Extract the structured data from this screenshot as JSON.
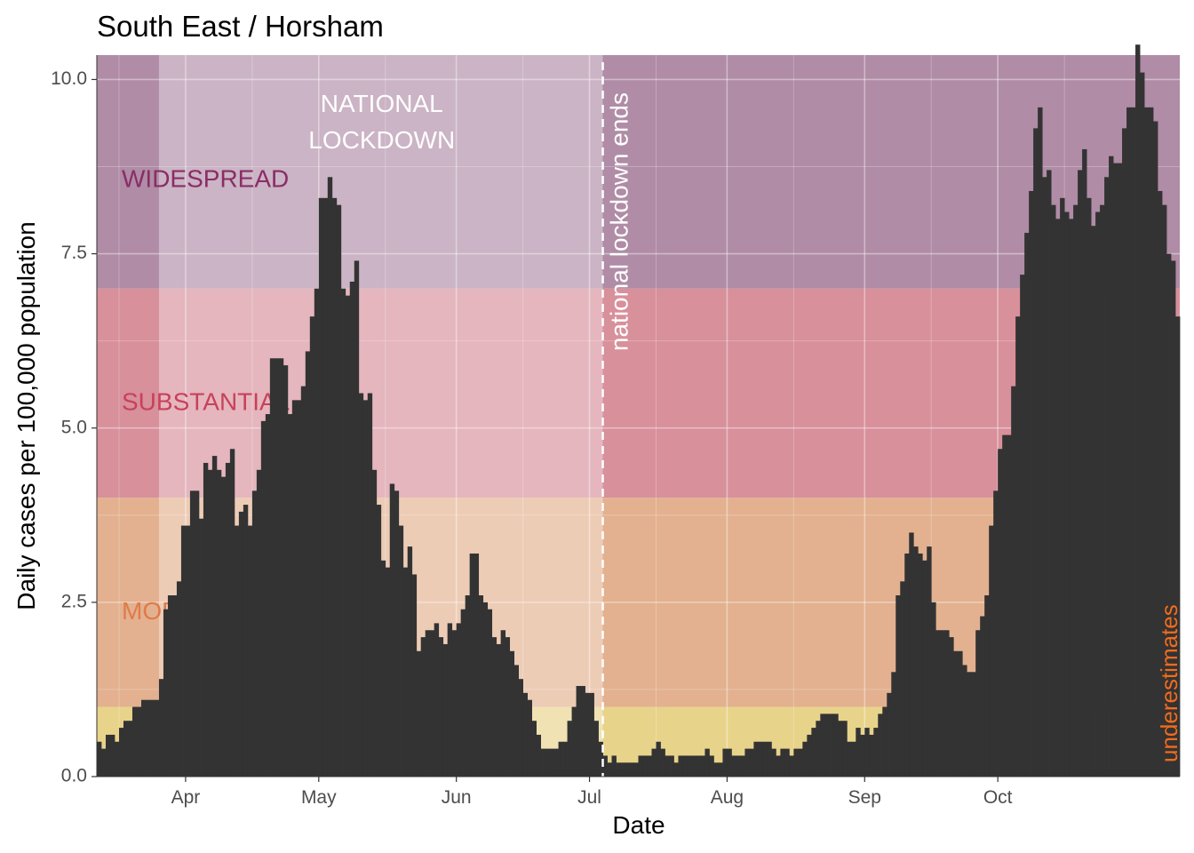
{
  "chart_data": {
    "type": "bar",
    "title": "South East / Horsham",
    "xlabel": "Date",
    "ylabel": "Daily cases per 100,000 population",
    "x_start": "2020-03-12",
    "ylim": [
      0,
      10.35
    ],
    "yticks": [
      0.0,
      2.5,
      5.0,
      7.5,
      10.0
    ],
    "ytick_labels": [
      "0.0",
      "2.5",
      "5.0",
      "7.5",
      "10.0"
    ],
    "xticks": [
      {
        "date": "2020-04-01",
        "label": "Apr"
      },
      {
        "date": "2020-05-01",
        "label": "May"
      },
      {
        "date": "2020-06-01",
        "label": "Jun"
      },
      {
        "date": "2020-07-01",
        "label": "Jul"
      },
      {
        "date": "2020-08-01",
        "label": "Aug"
      },
      {
        "date": "2020-09-01",
        "label": "Sep"
      },
      {
        "date": "2020-10-01",
        "label": "Oct"
      }
    ],
    "bands": [
      {
        "label": "",
        "ymin": 0,
        "ymax": 1,
        "color": "#E8D38A"
      },
      {
        "label": "MODERATE",
        "ymin": 1,
        "ymax": 4,
        "color": "#E3B18F"
      },
      {
        "label": "SUBSTANTIAL",
        "ymin": 4,
        "ymax": 7,
        "color": "#D8909B"
      },
      {
        "label": "WIDESPREAD",
        "ymin": 7,
        "ymax": 10.35,
        "color": "#B08CA6"
      }
    ],
    "band_label_colors": {
      "MODERATE": "#E07A4A",
      "SUBSTANTIAL": "#C8415A",
      "WIDESPREAD": "#8A2D66"
    },
    "lockdown": {
      "start": "2020-03-26",
      "end": "2020-07-04",
      "label_line1": "NATIONAL",
      "label_line2": "LOCKDOWN",
      "end_label": "national lockdown ends"
    },
    "underestimates_label": "underestimates",
    "underestimates_color": "#F26B1D",
    "bar_color": "#333333",
    "values": [
      0.5,
      0.4,
      0.6,
      0.6,
      0.5,
      0.7,
      0.8,
      0.8,
      1.0,
      1.0,
      1.1,
      1.1,
      1.1,
      1.1,
      1.4,
      2.4,
      2.6,
      2.6,
      2.8,
      3.6,
      3.6,
      4.1,
      4.1,
      3.7,
      4.5,
      4.4,
      4.6,
      4.4,
      4.3,
      4.5,
      4.7,
      3.6,
      3.8,
      3.9,
      3.6,
      4.1,
      4.4,
      5.1,
      5.2,
      6.0,
      6.0,
      6.0,
      5.9,
      5.2,
      5.4,
      5.4,
      5.6,
      6.1,
      6.6,
      7.0,
      8.3,
      8.3,
      8.6,
      8.3,
      8.2,
      7.0,
      6.9,
      7.1,
      7.4,
      5.5,
      5.4,
      5.5,
      4.4,
      3.9,
      3.1,
      3.0,
      4.2,
      4.1,
      3.6,
      3.0,
      3.3,
      2.9,
      1.8,
      2.0,
      2.1,
      2.1,
      2.2,
      2.0,
      1.9,
      2.2,
      2.1,
      2.2,
      2.4,
      2.6,
      3.2,
      3.2,
      2.6,
      2.5,
      2.4,
      2.0,
      1.9,
      2.1,
      2.0,
      1.8,
      1.6,
      1.4,
      1.2,
      1.1,
      0.8,
      0.6,
      0.4,
      0.4,
      0.4,
      0.4,
      0.5,
      0.5,
      0.8,
      1.0,
      1.3,
      1.3,
      1.2,
      1.2,
      0.8,
      0.5,
      0.3,
      0.2,
      0.3,
      0.2,
      0.2,
      0.2,
      0.2,
      0.2,
      0.3,
      0.3,
      0.3,
      0.4,
      0.5,
      0.4,
      0.3,
      0.3,
      0.2,
      0.3,
      0.3,
      0.3,
      0.3,
      0.3,
      0.3,
      0.4,
      0.3,
      0.2,
      0.2,
      0.4,
      0.4,
      0.3,
      0.3,
      0.3,
      0.4,
      0.4,
      0.5,
      0.5,
      0.5,
      0.5,
      0.4,
      0.3,
      0.4,
      0.4,
      0.3,
      0.4,
      0.4,
      0.5,
      0.6,
      0.7,
      0.8,
      0.9,
      0.9,
      0.9,
      0.9,
      0.8,
      0.8,
      0.5,
      0.5,
      0.7,
      0.6,
      0.7,
      0.6,
      0.7,
      0.9,
      1.0,
      1.2,
      1.5,
      2.6,
      2.8,
      3.2,
      3.5,
      3.3,
      3.2,
      3.1,
      3.3,
      2.5,
      2.1,
      2.1,
      2.1,
      2.0,
      1.8,
      1.8,
      1.6,
      1.5,
      1.5,
      2.1,
      2.3,
      2.6,
      3.6,
      4.1,
      4.7,
      4.9,
      4.9,
      5.6,
      6.6,
      7.2,
      7.8,
      8.4,
      9.3,
      9.6,
      8.6,
      8.7,
      8.2,
      8.0,
      8.3,
      8.1,
      8.0,
      8.2,
      8.7,
      9.0,
      8.3,
      7.9,
      8.1,
      8.2,
      8.6,
      8.9,
      8.8,
      8.8,
      9.3,
      9.6,
      9.6,
      10.5,
      10.1,
      9.6,
      9.6,
      9.4,
      8.4,
      8.2,
      7.5,
      7.4,
      6.6
    ]
  }
}
